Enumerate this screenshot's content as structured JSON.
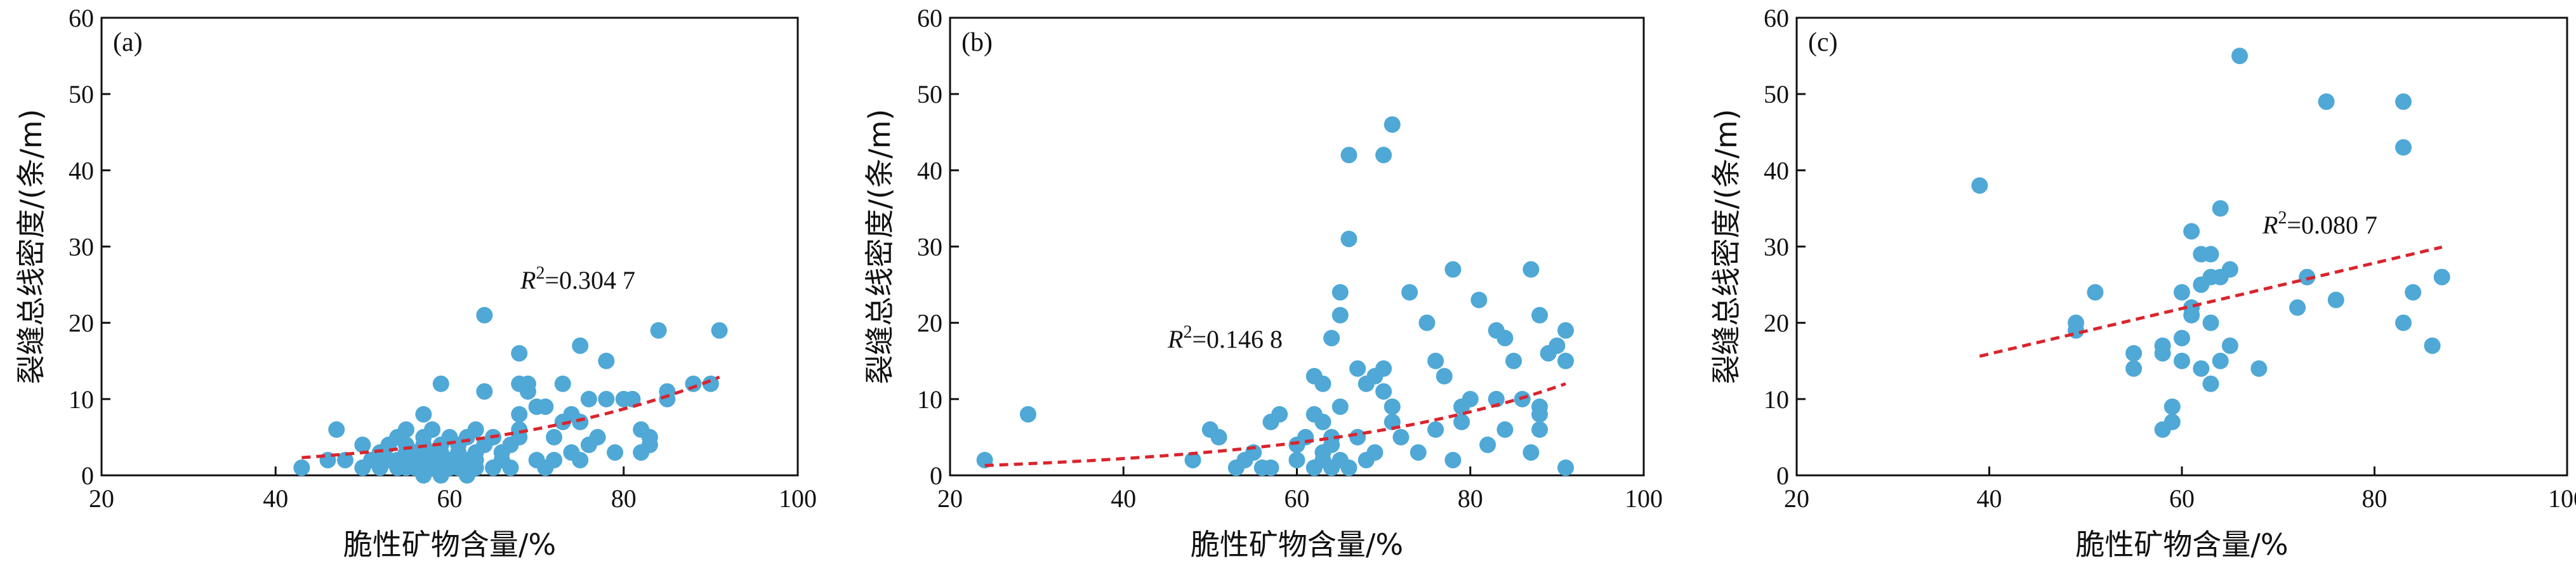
{
  "colors": {
    "point": "#4fa8d6",
    "trend": "#d9252e",
    "axis": "#111111"
  },
  "chart_data": [
    {
      "type": "scatter",
      "panel_label": "(a)",
      "xlabel": "脆性矿物含量/%",
      "ylabel": "裂缝总线密度/(条/m)",
      "xlim": [
        20,
        100
      ],
      "ylim": [
        0,
        60
      ],
      "xticks": [
        20,
        40,
        60,
        80,
        100
      ],
      "yticks": [
        0,
        10,
        20,
        30,
        40,
        50,
        60
      ],
      "grid": false,
      "r2_label": "=0.304 7",
      "trend": {
        "kind": "exponential",
        "a": 0.5,
        "b": 0.0357,
        "x_range": [
          43,
          91
        ]
      },
      "points": [
        [
          43,
          1
        ],
        [
          46,
          2
        ],
        [
          47,
          6
        ],
        [
          48,
          2
        ],
        [
          50,
          1
        ],
        [
          50,
          4
        ],
        [
          51,
          2
        ],
        [
          52,
          1
        ],
        [
          52,
          3
        ],
        [
          53,
          2
        ],
        [
          53,
          4
        ],
        [
          54,
          1
        ],
        [
          54,
          2
        ],
        [
          54,
          5
        ],
        [
          55,
          1
        ],
        [
          55,
          2
        ],
        [
          55,
          3
        ],
        [
          55,
          4
        ],
        [
          55,
          6
        ],
        [
          56,
          1
        ],
        [
          56,
          2
        ],
        [
          56,
          3
        ],
        [
          57,
          0
        ],
        [
          57,
          1
        ],
        [
          57,
          2
        ],
        [
          57,
          4
        ],
        [
          57,
          5
        ],
        [
          57,
          8
        ],
        [
          58,
          1
        ],
        [
          58,
          2
        ],
        [
          58,
          3
        ],
        [
          58,
          6
        ],
        [
          59,
          0
        ],
        [
          59,
          1
        ],
        [
          59,
          2
        ],
        [
          59,
          3
        ],
        [
          59,
          4
        ],
        [
          59,
          12
        ],
        [
          60,
          1
        ],
        [
          60,
          2
        ],
        [
          60,
          5
        ],
        [
          61,
          1
        ],
        [
          61,
          3
        ],
        [
          61,
          4
        ],
        [
          62,
          0
        ],
        [
          62,
          1
        ],
        [
          62,
          2
        ],
        [
          62,
          5
        ],
        [
          63,
          1
        ],
        [
          63,
          2
        ],
        [
          63,
          3
        ],
        [
          63,
          6
        ],
        [
          64,
          4
        ],
        [
          64,
          11
        ],
        [
          64,
          21
        ],
        [
          65,
          1
        ],
        [
          65,
          5
        ],
        [
          66,
          2
        ],
        [
          66,
          3
        ],
        [
          67,
          1
        ],
        [
          67,
          4
        ],
        [
          68,
          5
        ],
        [
          68,
          6
        ],
        [
          68,
          8
        ],
        [
          68,
          12
        ],
        [
          68,
          16
        ],
        [
          69,
          11
        ],
        [
          69,
          12
        ],
        [
          70,
          2
        ],
        [
          70,
          9
        ],
        [
          71,
          1
        ],
        [
          71,
          9
        ],
        [
          72,
          2
        ],
        [
          72,
          5
        ],
        [
          73,
          7
        ],
        [
          73,
          12
        ],
        [
          74,
          3
        ],
        [
          74,
          8
        ],
        [
          75,
          2
        ],
        [
          75,
          7
        ],
        [
          75,
          17
        ],
        [
          76,
          4
        ],
        [
          76,
          10
        ],
        [
          77,
          5
        ],
        [
          78,
          15
        ],
        [
          78,
          10
        ],
        [
          79,
          3
        ],
        [
          80,
          10
        ],
        [
          81,
          10
        ],
        [
          82,
          3
        ],
        [
          82,
          6
        ],
        [
          83,
          4
        ],
        [
          83,
          5
        ],
        [
          84,
          19
        ],
        [
          85,
          10
        ],
        [
          85,
          11
        ],
        [
          88,
          12
        ],
        [
          90,
          12
        ],
        [
          91,
          19
        ]
      ]
    },
    {
      "type": "scatter",
      "panel_label": "(b)",
      "xlabel": "脆性矿物含量/%",
      "ylabel": "裂缝总线密度/(条/m)",
      "xlim": [
        20,
        100
      ],
      "ylim": [
        0,
        60
      ],
      "xticks": [
        20,
        40,
        60,
        80,
        100
      ],
      "yticks": [
        0,
        10,
        20,
        30,
        40,
        50,
        60
      ],
      "grid": false,
      "r2_label": "=0.146 8",
      "trend": {
        "kind": "exponential",
        "a": 0.58,
        "b": 0.0333,
        "x_range": [
          24,
          91
        ]
      },
      "points": [
        [
          24,
          2
        ],
        [
          29,
          8
        ],
        [
          48,
          2
        ],
        [
          50,
          6
        ],
        [
          51,
          5
        ],
        [
          53,
          1
        ],
        [
          54,
          2
        ],
        [
          55,
          3
        ],
        [
          56,
          1
        ],
        [
          57,
          1
        ],
        [
          57,
          7
        ],
        [
          58,
          8
        ],
        [
          60,
          4
        ],
        [
          60,
          2
        ],
        [
          61,
          5
        ],
        [
          62,
          1
        ],
        [
          62,
          13
        ],
        [
          62,
          8
        ],
        [
          63,
          2
        ],
        [
          63,
          12
        ],
        [
          63,
          7
        ],
        [
          63,
          3
        ],
        [
          64,
          4
        ],
        [
          64,
          5
        ],
        [
          64,
          18
        ],
        [
          64,
          1
        ],
        [
          65,
          2
        ],
        [
          65,
          21
        ],
        [
          65,
          24
        ],
        [
          65,
          9
        ],
        [
          66,
          42
        ],
        [
          66,
          31
        ],
        [
          66,
          1
        ],
        [
          67,
          5
        ],
        [
          67,
          14
        ],
        [
          68,
          2
        ],
        [
          68,
          12
        ],
        [
          69,
          13
        ],
        [
          69,
          3
        ],
        [
          70,
          11
        ],
        [
          70,
          14
        ],
        [
          70,
          42
        ],
        [
          71,
          46
        ],
        [
          71,
          7
        ],
        [
          71,
          9
        ],
        [
          72,
          5
        ],
        [
          73,
          24
        ],
        [
          74,
          3
        ],
        [
          75,
          20
        ],
        [
          76,
          6
        ],
        [
          76,
          15
        ],
        [
          77,
          13
        ],
        [
          78,
          2
        ],
        [
          78,
          27
        ],
        [
          79,
          7
        ],
        [
          79,
          9
        ],
        [
          80,
          10
        ],
        [
          81,
          23
        ],
        [
          82,
          4
        ],
        [
          83,
          19
        ],
        [
          83,
          10
        ],
        [
          84,
          18
        ],
        [
          84,
          6
        ],
        [
          85,
          15
        ],
        [
          86,
          10
        ],
        [
          87,
          27
        ],
        [
          87,
          3
        ],
        [
          88,
          21
        ],
        [
          88,
          9
        ],
        [
          88,
          8
        ],
        [
          88,
          6
        ],
        [
          89,
          16
        ],
        [
          90,
          17
        ],
        [
          91,
          19
        ],
        [
          91,
          15
        ],
        [
          91,
          1
        ]
      ]
    },
    {
      "type": "scatter",
      "panel_label": "(c)",
      "xlabel": "脆性矿物含量/%",
      "ylabel": "裂缝总线密度/(条/m)",
      "xlim": [
        20,
        100
      ],
      "ylim": [
        0,
        60
      ],
      "xticks": [
        20,
        40,
        60,
        80,
        100
      ],
      "yticks": [
        0,
        10,
        20,
        30,
        40,
        50,
        60
      ],
      "grid": false,
      "r2_label": "=0.080 7",
      "trend": {
        "kind": "linear",
        "slope": 0.298,
        "intercept": 4.0,
        "x_range": [
          39,
          87
        ]
      },
      "points": [
        [
          39,
          38
        ],
        [
          49,
          19
        ],
        [
          49,
          20
        ],
        [
          51,
          24
        ],
        [
          55,
          14
        ],
        [
          55,
          16
        ],
        [
          58,
          16
        ],
        [
          58,
          17
        ],
        [
          58,
          6
        ],
        [
          59,
          9
        ],
        [
          59,
          7
        ],
        [
          60,
          15
        ],
        [
          60,
          18
        ],
        [
          60,
          24
        ],
        [
          61,
          22
        ],
        [
          61,
          32
        ],
        [
          61,
          21
        ],
        [
          62,
          29
        ],
        [
          62,
          25
        ],
        [
          62,
          14
        ],
        [
          63,
          29
        ],
        [
          63,
          26
        ],
        [
          63,
          20
        ],
        [
          63,
          12
        ],
        [
          64,
          15
        ],
        [
          64,
          26
        ],
        [
          64,
          35
        ],
        [
          65,
          17
        ],
        [
          65,
          27
        ],
        [
          66,
          55
        ],
        [
          68,
          14
        ],
        [
          72,
          22
        ],
        [
          73,
          26
        ],
        [
          75,
          49
        ],
        [
          76,
          23
        ],
        [
          83,
          49
        ],
        [
          83,
          43
        ],
        [
          83,
          20
        ],
        [
          84,
          24
        ],
        [
          86,
          17
        ],
        [
          87,
          26
        ]
      ]
    }
  ]
}
